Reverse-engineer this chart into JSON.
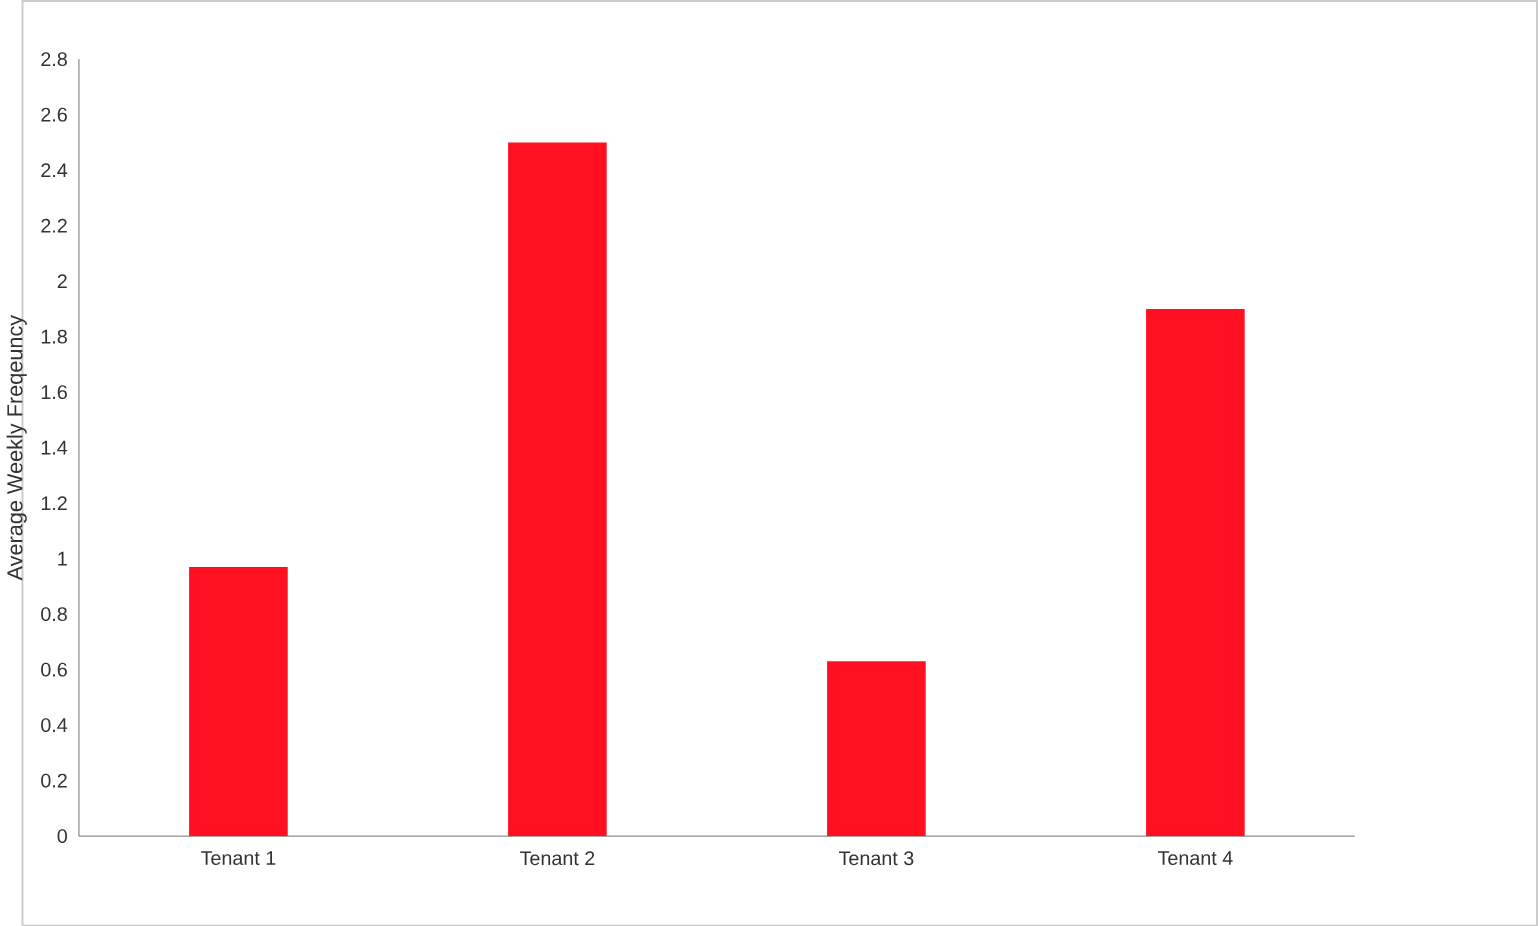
{
  "chart_data": {
    "type": "bar",
    "ylabel": "Average Weekly Freqeuncy",
    "categories": [
      "Tenant 1",
      "Tenant 2",
      "Tenant 3",
      "Tenant 4"
    ],
    "values": [
      0.97,
      2.5,
      0.63,
      1.9
    ],
    "color": "#ff1020",
    "ylim": [
      0,
      2.8
    ],
    "yticks": [
      0,
      0.2,
      0.4,
      0.6,
      0.8,
      1,
      1.2,
      1.4,
      1.6,
      1.8,
      2,
      2.2,
      2.4,
      2.6,
      2.8
    ],
    "grid": false
  }
}
